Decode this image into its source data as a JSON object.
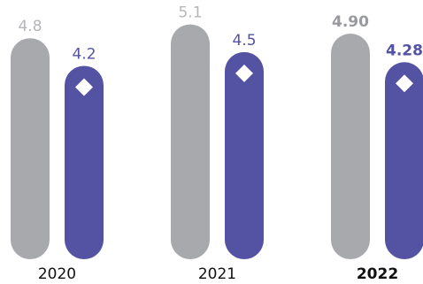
{
  "colors": {
    "grey": "#a8a9ad",
    "purple": "#5352a3",
    "marker": "#ffffff",
    "year_text": "#111111"
  },
  "chart_data": {
    "type": "bar",
    "categories": [
      "2020",
      "2021",
      "2022"
    ],
    "highlight_category": "2022",
    "marker_series": "Series 2",
    "series": [
      {
        "values": [
          4.8,
          5.1,
          4.9
        ],
        "labels": [
          "4.8",
          "5.1",
          "4.90"
        ],
        "color": "#a8a9ad"
      },
      {
        "values": [
          4.2,
          4.5,
          4.28
        ],
        "labels": [
          "4.2",
          "4.5",
          "4.28"
        ],
        "color": "#5352a3"
      }
    ],
    "title": "",
    "xlabel": "",
    "ylabel": "",
    "ylim": [
      0,
      5.4
    ],
    "grid": false,
    "legend": "none"
  }
}
